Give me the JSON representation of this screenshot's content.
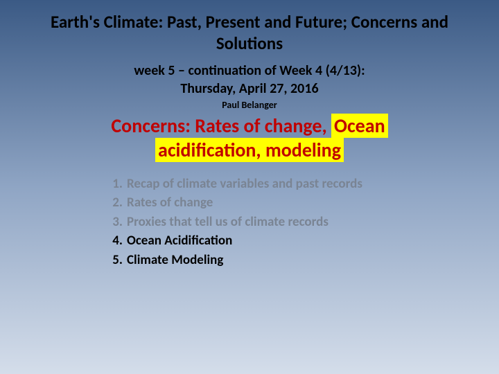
{
  "title": "Earth's Climate: Past, Present and Future; Concerns and Solutions",
  "subtitle_line1": "week 5 – continuation of Week 4 (4/13):",
  "subtitle_line2": "Thursday, April 27, 2016",
  "author": "Paul Belanger",
  "topic": {
    "prefix": "Concerns: Rates of change, ",
    "highlight1": "Ocean",
    "highlight2": "acidification, modeling"
  },
  "agenda": [
    {
      "text": "Recap of climate variables and past records",
      "active": false
    },
    {
      "text": "Rates of change",
      "active": false
    },
    {
      "text": "Proxies that tell us of climate records",
      "active": false
    },
    {
      "text": "Ocean Acidification",
      "active": true
    },
    {
      "text": "Climate Modeling",
      "active": true
    }
  ],
  "colors": {
    "highlight_bg": "#ffff00",
    "topic_text": "#c00000",
    "muted_text": "#7a8493",
    "active_text": "#000000"
  }
}
